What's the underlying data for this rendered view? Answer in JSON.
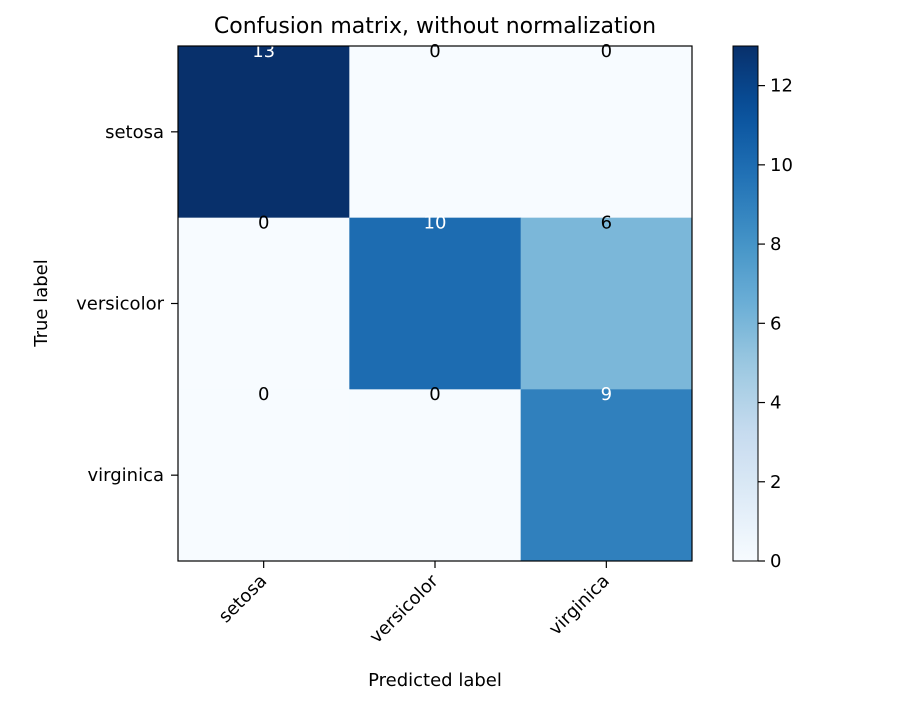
{
  "chart_data": {
    "type": "heatmap",
    "title": "Confusion matrix, without normalization",
    "xlabel": "Predicted label",
    "ylabel": "True label",
    "x_categories": [
      "setosa",
      "versicolor",
      "virginica"
    ],
    "y_categories": [
      "setosa",
      "versicolor",
      "virginica"
    ],
    "values": [
      [
        13,
        0,
        0
      ],
      [
        0,
        10,
        6
      ],
      [
        0,
        0,
        9
      ]
    ],
    "colorbar": {
      "range": [
        0,
        13
      ],
      "ticks": [
        0,
        2,
        4,
        6,
        8,
        10,
        12
      ]
    },
    "colormap": "Blues",
    "colormap_stops": [
      "#f7fbff",
      "#deebf7",
      "#c6dbef",
      "#9ecae1",
      "#6baed6",
      "#4292c6",
      "#2171b5",
      "#08519c",
      "#08306b"
    ],
    "grid": false
  }
}
